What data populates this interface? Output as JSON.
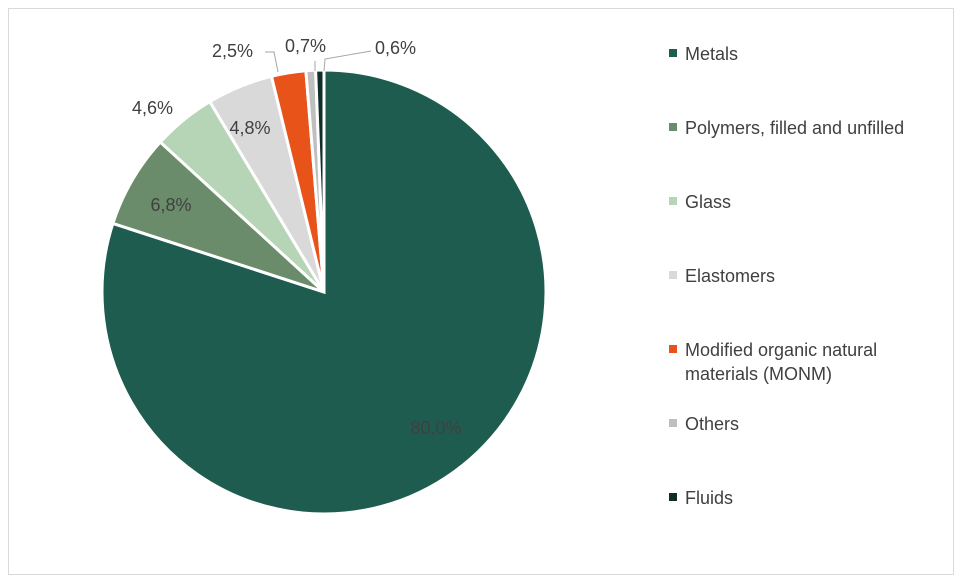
{
  "chart_data": {
    "type": "pie",
    "title": "",
    "series": [
      {
        "name": "Metals",
        "value": 80.0,
        "label": "80,0%",
        "color": "#1f5c50"
      },
      {
        "name": "Polymers, filled and unfilled",
        "value": 6.8,
        "label": "6,8%",
        "color": "#6b8c6a"
      },
      {
        "name": "Glass",
        "value": 4.6,
        "label": "4,6%",
        "color": "#b6d4b6"
      },
      {
        "name": "Elastomers",
        "value": 4.8,
        "label": "4,8%",
        "color": "#d9d9d9"
      },
      {
        "name": "Modified organic natural materials (MONM)",
        "value": 2.5,
        "label": "2,5%",
        "color": "#e8531a"
      },
      {
        "name": "Others",
        "value": 0.7,
        "label": "0,7%",
        "color": "#bfbfbf"
      },
      {
        "name": "Fluids",
        "value": 0.6,
        "label": "0,6%",
        "color": "#0f2e28"
      }
    ],
    "legend_position": "right"
  }
}
